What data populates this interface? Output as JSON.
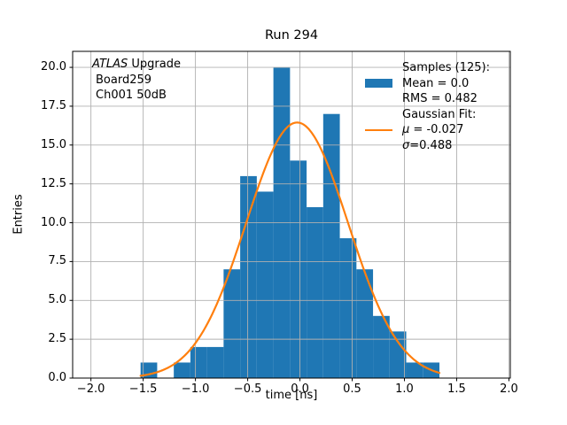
{
  "chart_data": {
    "type": "histogram",
    "title": "Run 294",
    "xlabel": "time [ns]",
    "ylabel": "Entries",
    "xlim": [
      -2.175,
      2.013
    ],
    "ylim": [
      0,
      21.03
    ],
    "grid": true,
    "legend_position": "upper right",
    "x_ticks": [
      -2.0,
      -1.5,
      -1.0,
      -0.5,
      0.0,
      0.5,
      1.0,
      1.5,
      2.0
    ],
    "x_tick_labels": [
      "−2.0",
      "−1.5",
      "−1.0",
      "−0.5",
      "0.0",
      "0.5",
      "1.0",
      "1.5",
      "2.0"
    ],
    "y_ticks": [
      0.0,
      2.5,
      5.0,
      7.5,
      10.0,
      12.5,
      15.0,
      17.5,
      20.0
    ],
    "y_tick_labels": [
      "0.0",
      "2.5",
      "5.0",
      "7.5",
      "10.0",
      "12.5",
      "15.0",
      "17.5",
      "20.0"
    ],
    "bins": {
      "start": -1.525,
      "width": 0.15889,
      "counts": [
        1,
        0,
        1,
        2,
        2,
        7,
        13,
        12,
        20,
        14,
        11,
        17,
        9,
        7,
        4,
        3,
        1,
        1
      ]
    },
    "samples_total": 125,
    "samples_mean": 0.0,
    "samples_rms": 0.482,
    "gaussian_fit": {
      "mu": -0.027,
      "sigma": 0.488,
      "amplitude": 16.45,
      "x_min": -1.525,
      "x_max": 1.335
    },
    "colors": {
      "histogram": "#1f77b4",
      "fit_line": "#ff7f0e",
      "grid": "#b0b0b0",
      "spine": "#000000"
    }
  },
  "annotation": {
    "line1_italic": "ATLAS",
    "line1_rest": " Upgrade",
    "line2": "Board259",
    "line3": "Ch001 50dB"
  },
  "legend": {
    "samples_header": "Samples (125):",
    "mean_label": "Mean = 0.0",
    "rms_label": "RMS = 0.482",
    "fit_header": "Gaussian Fit:",
    "mu_symbol": "μ",
    "mu_value": " = -0.027",
    "sigma_symbol": "σ",
    "sigma_value": "=0.488"
  }
}
